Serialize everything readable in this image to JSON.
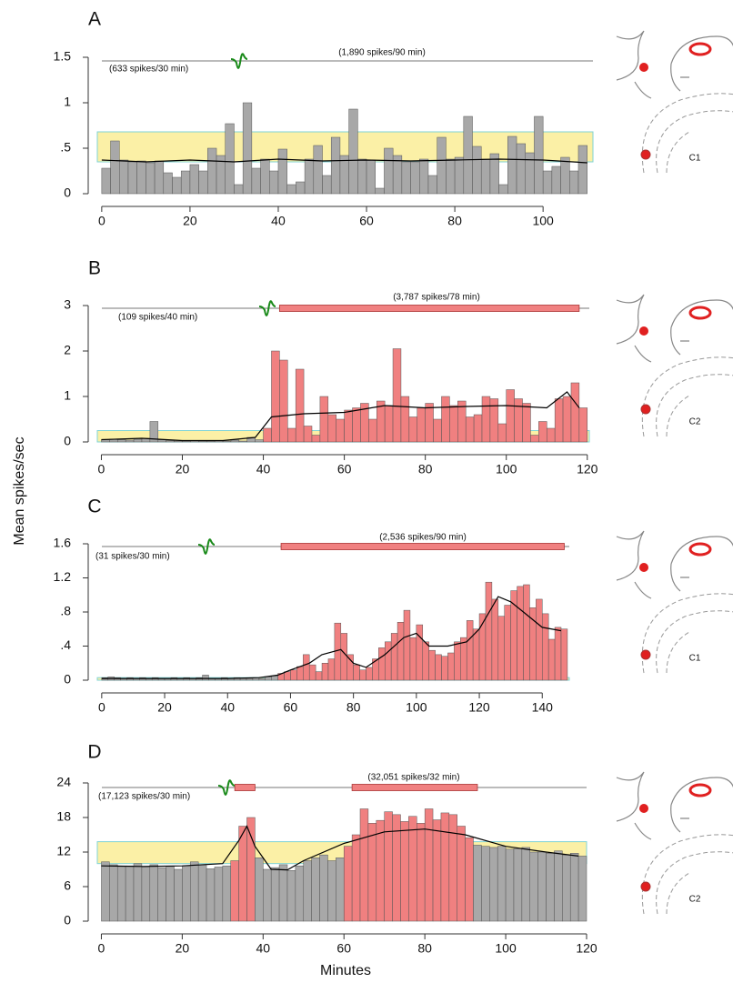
{
  "figure": {
    "ylabel": "Mean spikes/sec",
    "xlabel": "Minutes"
  },
  "chart_data": [
    {
      "type": "histogram",
      "panel": "A",
      "diagram_label": "C1",
      "annotations": [
        "(633 spikes/30 min)",
        "(1,890 spikes/90 min)"
      ],
      "bins": [
        0,
        2,
        4,
        6,
        8,
        10,
        12,
        14,
        16,
        18,
        20,
        22,
        24,
        26,
        28,
        30,
        32,
        34,
        36,
        38,
        40,
        42,
        44,
        46,
        48,
        50,
        52,
        54,
        56,
        58,
        60,
        62,
        64,
        66,
        68,
        70,
        72,
        74,
        76,
        78,
        80,
        82,
        84,
        86,
        88,
        90,
        92,
        94,
        96,
        98,
        100,
        102,
        104,
        106,
        108,
        110
      ],
      "values": [
        0.28,
        0.58,
        0.37,
        0.35,
        0.36,
        0.34,
        0.36,
        0.23,
        0.18,
        0.25,
        0.32,
        0.25,
        0.5,
        0.42,
        0.77,
        0.1,
        1.0,
        0.28,
        0.38,
        0.25,
        0.49,
        0.1,
        0.13,
        0.38,
        0.53,
        0.2,
        0.62,
        0.42,
        0.93,
        0.38,
        0.37,
        0.06,
        0.5,
        0.42,
        0.35,
        0.35,
        0.38,
        0.2,
        0.62,
        0.38,
        0.4,
        0.85,
        0.52,
        0.38,
        0.44,
        0.1,
        0.63,
        0.55,
        0.45,
        0.85,
        0.25,
        0.3,
        0.4,
        0.25,
        0.53
      ],
      "color": "#a8a8a8",
      "highlight_color": "#f08080",
      "highlight": [],
      "stim_periods": [],
      "band": [
        0.35,
        0.68
      ],
      "band_color": "#fbf0a6",
      "band_edge": "#7fd3d6",
      "smooth": {
        "x": [
          0,
          10,
          20,
          30,
          40,
          50,
          60,
          70,
          80,
          90,
          100,
          110
        ],
        "values": [
          0.37,
          0.35,
          0.37,
          0.35,
          0.38,
          0.36,
          0.37,
          0.36,
          0.37,
          0.38,
          0.37,
          0.34
        ],
        "color": "#000000"
      },
      "xlim": [
        -1,
        111.3
      ],
      "ylim": [
        0,
        1.5
      ],
      "xticks": [
        0,
        20,
        40,
        60,
        80,
        100
      ],
      "yticks": [
        0,
        {
          "value": 0.5,
          "label": ".5"
        },
        1,
        1.5
      ]
    },
    {
      "type": "histogram",
      "panel": "B",
      "diagram_label": "C2",
      "annotations": [
        "(109 spikes/40 min)",
        "(3,787 spikes/78 min)"
      ],
      "bins": [
        0,
        2,
        4,
        6,
        8,
        10,
        12,
        14,
        16,
        18,
        20,
        22,
        24,
        26,
        28,
        30,
        32,
        34,
        36,
        38,
        40,
        42,
        44,
        46,
        48,
        50,
        52,
        54,
        56,
        58,
        60,
        62,
        64,
        66,
        68,
        70,
        72,
        74,
        76,
        78,
        80,
        82,
        84,
        86,
        88,
        90,
        92,
        94,
        96,
        98,
        100,
        102,
        104,
        106,
        108,
        110,
        112,
        114,
        116,
        118,
        120
      ],
      "values": [
        0.05,
        0.06,
        0.05,
        0.04,
        0.06,
        0.08,
        0.45,
        0.05,
        0.03,
        0.02,
        0.02,
        0.03,
        0.02,
        0.02,
        0.03,
        0.02,
        0.04,
        0.02,
        0.1,
        0.05,
        0.3,
        2.0,
        1.8,
        0.3,
        1.6,
        0.35,
        0.15,
        1.0,
        0.6,
        0.5,
        0.7,
        0.75,
        0.85,
        0.5,
        0.9,
        0.8,
        2.05,
        1.0,
        0.55,
        0.75,
        0.85,
        0.5,
        1.0,
        0.8,
        0.9,
        0.55,
        0.6,
        1.0,
        0.95,
        0.4,
        1.15,
        0.95,
        0.85,
        0.15,
        0.45,
        0.3,
        0.95,
        1.0,
        1.3,
        0.75
      ],
      "color": "#a8a8a8",
      "highlight_color": "#f08080",
      "highlight": [
        [
          40,
          120
        ]
      ],
      "stim_periods": [
        [
          44,
          118
        ]
      ],
      "band": [
        0,
        0.25
      ],
      "band_color": "#fbf0a6",
      "band_edge": "#7fd3d6",
      "smooth": {
        "x": [
          0,
          10,
          20,
          30,
          38,
          42,
          50,
          60,
          70,
          80,
          90,
          100,
          110,
          115,
          118
        ],
        "values": [
          0.05,
          0.08,
          0.03,
          0.03,
          0.1,
          0.55,
          0.62,
          0.65,
          0.8,
          0.75,
          0.78,
          0.8,
          0.75,
          1.1,
          0.75
        ],
        "color": "#000000"
      },
      "xlim": [
        -1,
        120.5
      ],
      "ylim": [
        0,
        3
      ],
      "xticks": [
        0,
        20,
        40,
        60,
        80,
        100,
        120
      ],
      "yticks": [
        0,
        1,
        2,
        3
      ]
    },
    {
      "type": "histogram",
      "panel": "C",
      "diagram_label": "C1",
      "annotations": [
        "(31 spikes/30 min)",
        "(2,536 spikes/90 min)"
      ],
      "bins": [
        0,
        2,
        4,
        6,
        8,
        10,
        12,
        14,
        16,
        18,
        20,
        22,
        24,
        26,
        28,
        30,
        32,
        34,
        36,
        38,
        40,
        42,
        44,
        46,
        48,
        50,
        52,
        54,
        56,
        58,
        60,
        62,
        64,
        66,
        68,
        70,
        72,
        74,
        76,
        78,
        80,
        82,
        84,
        86,
        88,
        90,
        92,
        94,
        96,
        98,
        100,
        102,
        104,
        106,
        108,
        110,
        112,
        114,
        116,
        118,
        120,
        122,
        124,
        126,
        128,
        130,
        132,
        134,
        136,
        138,
        140,
        142,
        144,
        146,
        148
      ],
      "values": [
        0.03,
        0.04,
        0.03,
        0.02,
        0.03,
        0.02,
        0.03,
        0.02,
        0.03,
        0.02,
        0.02,
        0.03,
        0.02,
        0.03,
        0.02,
        0.03,
        0.06,
        0.02,
        0.02,
        0.03,
        0.02,
        0.03,
        0.02,
        0.02,
        0.03,
        0.02,
        0.04,
        0.05,
        0.08,
        0.1,
        0.12,
        0.16,
        0.3,
        0.18,
        0.1,
        0.2,
        0.25,
        0.67,
        0.55,
        0.3,
        0.18,
        0.12,
        0.15,
        0.25,
        0.38,
        0.45,
        0.55,
        0.68,
        0.82,
        0.5,
        0.65,
        0.45,
        0.35,
        0.3,
        0.28,
        0.32,
        0.45,
        0.5,
        0.7,
        0.6,
        0.78,
        1.15,
        0.95,
        0.75,
        0.88,
        1.05,
        1.1,
        1.12,
        0.85,
        0.95,
        0.78,
        0.48,
        0.62,
        0.6
      ],
      "color": "#a8a8a8",
      "highlight_color": "#f08080",
      "highlight": [
        [
          56,
          148
        ]
      ],
      "stim_periods": [
        [
          57,
          147
        ]
      ],
      "band": [
        0,
        0.03
      ],
      "band_color": "#fbf0a6",
      "band_edge": "#7fd3d6",
      "smooth": {
        "x": [
          0,
          20,
          40,
          50,
          56,
          60,
          66,
          70,
          76,
          80,
          84,
          90,
          96,
          100,
          104,
          110,
          116,
          120,
          126,
          130,
          134,
          140,
          146
        ],
        "values": [
          0.02,
          0.02,
          0.02,
          0.03,
          0.06,
          0.12,
          0.2,
          0.3,
          0.36,
          0.2,
          0.15,
          0.3,
          0.5,
          0.55,
          0.4,
          0.4,
          0.45,
          0.6,
          0.98,
          0.92,
          0.8,
          0.62,
          0.58
        ],
        "color": "#000000"
      },
      "xlim": [
        -1.4,
        148.6
      ],
      "ylim": [
        0,
        1.6
      ],
      "xticks": [
        0,
        20,
        40,
        60,
        80,
        100,
        120,
        140
      ],
      "yticks": [
        0,
        {
          "value": 0.4,
          "label": ".4"
        },
        {
          "value": 0.8,
          "label": ".8"
        },
        1.2,
        1.6
      ]
    },
    {
      "type": "histogram",
      "panel": "D",
      "diagram_label": "C2",
      "annotations": [
        "(17,123 spikes/30 min)",
        "(32,051 spikes/32 min)"
      ],
      "bins": [
        0,
        2,
        4,
        6,
        8,
        10,
        12,
        14,
        16,
        18,
        20,
        22,
        24,
        26,
        28,
        30,
        32,
        34,
        36,
        38,
        40,
        42,
        44,
        46,
        48,
        50,
        52,
        54,
        56,
        58,
        60,
        62,
        64,
        66,
        68,
        70,
        72,
        74,
        76,
        78,
        80,
        82,
        84,
        86,
        88,
        90,
        92,
        94,
        96,
        98,
        100,
        102,
        104,
        106,
        108,
        110,
        112,
        114,
        116,
        118,
        120
      ],
      "values": [
        10.3,
        9.8,
        9.5,
        9.6,
        10,
        9.4,
        9.8,
        9.3,
        9.5,
        9,
        9.6,
        10.3,
        9.8,
        9.1,
        9.4,
        9.6,
        10.5,
        16.5,
        18,
        11,
        9,
        9.3,
        9.8,
        8.8,
        9.6,
        10.5,
        11,
        11.5,
        10.5,
        11,
        13,
        15,
        19.5,
        17,
        17.5,
        19,
        18.5,
        17.3,
        18.2,
        17,
        19.5,
        17.6,
        18.8,
        18.5,
        16.5,
        14.5,
        13.2,
        13,
        12.8,
        13,
        12.5,
        12.6,
        12.8,
        12,
        12,
        11.8,
        12.2,
        11.5,
        11.8,
        11.3
      ],
      "color": "#a8a8a8",
      "highlight_color": "#f08080",
      "highlight": [
        [
          32,
          38
        ],
        [
          60,
          92
        ]
      ],
      "stim_periods": [
        [
          33,
          38
        ],
        [
          62,
          93
        ]
      ],
      "band": [
        10,
        13.8
      ],
      "band_color": "#fbf0a6",
      "band_edge": "#7fd3d6",
      "smooth": {
        "x": [
          0,
          10,
          20,
          30,
          34,
          36,
          38,
          42,
          46,
          50,
          60,
          70,
          80,
          90,
          100,
          110,
          118
        ],
        "values": [
          9.6,
          9.5,
          9.6,
          10,
          14,
          16.5,
          13,
          9,
          8.9,
          10.5,
          13.5,
          15.5,
          16,
          15,
          13,
          12,
          11.3
        ],
        "color": "#000000"
      },
      "xlim": [
        -1,
        120
      ],
      "ylim": [
        0,
        24
      ],
      "xticks": [
        0,
        20,
        40,
        60,
        80,
        100,
        120
      ],
      "yticks": [
        0,
        6,
        12,
        18,
        24
      ]
    }
  ]
}
